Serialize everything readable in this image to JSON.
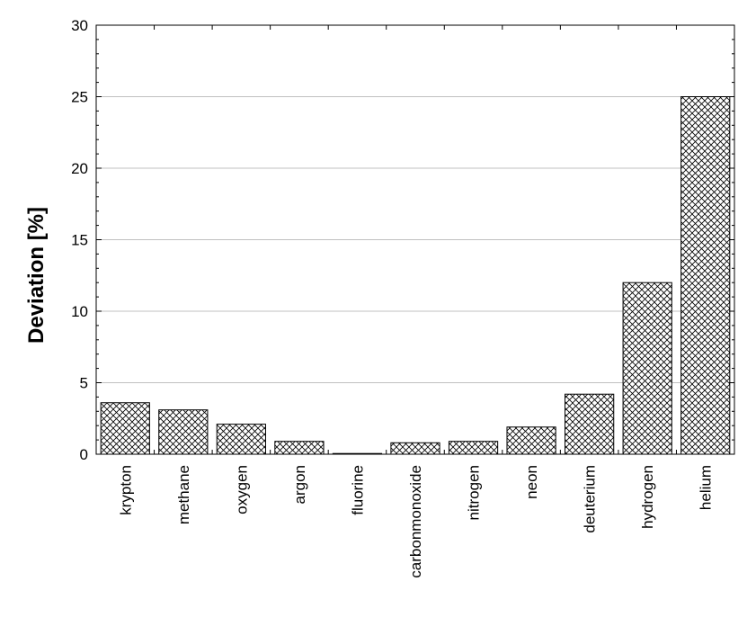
{
  "chart_data": {
    "type": "bar",
    "title": "",
    "xlabel": "",
    "ylabel": "Deviation  [%]",
    "ylim": [
      0,
      30
    ],
    "yticks": [
      0,
      5,
      10,
      15,
      20,
      25,
      30
    ],
    "grid": "horizontal",
    "pattern": "crosshatch",
    "colors": {
      "bar_fill": "#ffffff",
      "hatch": "#000000",
      "grid": "#c0c0c0",
      "axis": "#000000"
    },
    "categories": [
      "krypton",
      "methane",
      "oxygen",
      "argon",
      "fluorine",
      "carbonmonoxide",
      "nitrogen",
      "neon",
      "deuterium",
      "hydrogen",
      "helium"
    ],
    "values": [
      3.6,
      3.1,
      2.1,
      0.9,
      0.05,
      0.8,
      0.9,
      1.9,
      4.2,
      12.0,
      25.0
    ]
  }
}
